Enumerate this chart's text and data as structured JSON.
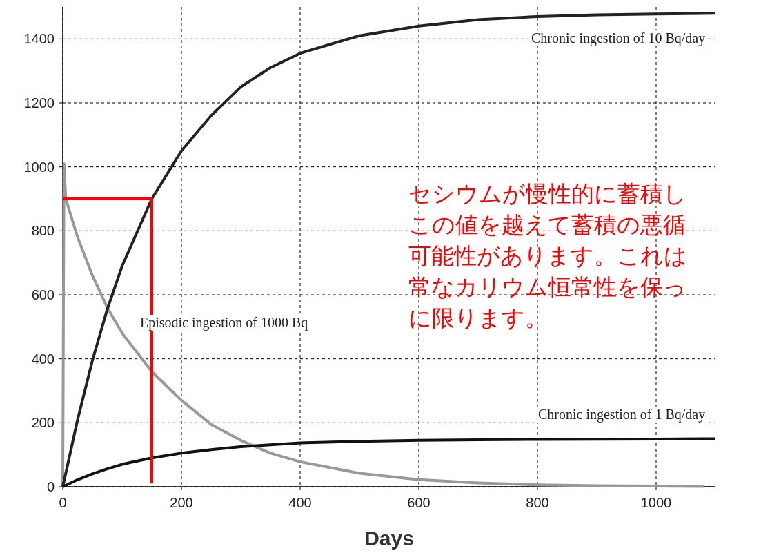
{
  "chart_data": {
    "type": "line",
    "xlabel": "Days",
    "xlim": [
      0,
      1100
    ],
    "ylim": [
      0,
      1500
    ],
    "xticks": [
      0,
      200,
      400,
      600,
      800,
      1000
    ],
    "yticks": [
      0,
      200,
      400,
      600,
      800,
      1000,
      1200,
      1400
    ],
    "grid": true,
    "series": [
      {
        "color": "#999999",
        "x": [
          0,
          2,
          5,
          25,
          50,
          75,
          100,
          150,
          200,
          250,
          300,
          350,
          400,
          500,
          600,
          700,
          800,
          900,
          1000,
          1080
        ],
        "values": [
          0,
          1010,
          900,
          780,
          660,
          560,
          480,
          360,
          270,
          195,
          145,
          105,
          78,
          42,
          22,
          12,
          6,
          3,
          2,
          1
        ]
      },
      {
        "color": "#222222",
        "x": [
          0,
          25,
          50,
          75,
          100,
          150,
          200,
          250,
          300,
          350,
          400,
          500,
          600,
          700,
          800,
          900,
          1000,
          1100
        ],
        "values": [
          0,
          210,
          395,
          555,
          690,
          900,
          1050,
          1160,
          1250,
          1310,
          1355,
          1410,
          1440,
          1460,
          1470,
          1475,
          1478,
          1480
        ]
      },
      {
        "color": "#111111",
        "x": [
          0,
          25,
          50,
          75,
          100,
          150,
          200,
          250,
          300,
          400,
          500,
          600,
          700,
          800,
          1000,
          1100
        ],
        "values": [
          0,
          22,
          40,
          56,
          70,
          90,
          105,
          116,
          125,
          137,
          142,
          145,
          147,
          148,
          149,
          150
        ]
      },
      {
        "color": "#ff0000",
        "x": [
          0,
          150,
          150
        ],
        "values": [
          900,
          900,
          10
        ]
      }
    ],
    "annotations": [
      "Chronic ingestion of 10 Bq/day",
      "Episodic ingestion of 1000 Bq",
      "Chronic ingestion of 1 Bq/day",
      "セシウムが慢性的に蓄積しこの値を越えて蓄積の悪循可能性があります。これは常なカリウム恒常性を保っに限ります。"
    ]
  }
}
